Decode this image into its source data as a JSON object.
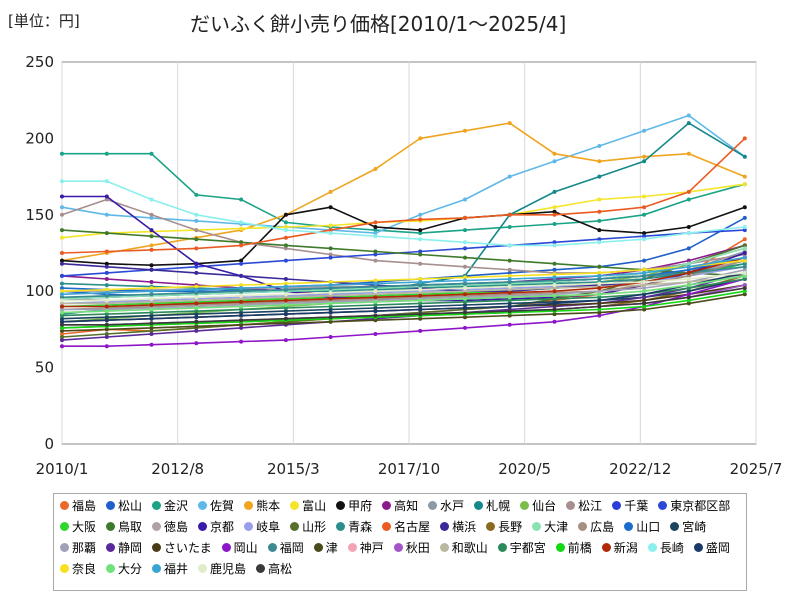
{
  "chart_data": {
    "type": "line",
    "title": "だいふく餅小売り価格[2010/1～2025/4]",
    "unit_label": "[単位：円]",
    "xlabel": "",
    "ylabel": "",
    "ylim": [
      0,
      250
    ],
    "yticks": [
      0,
      50,
      100,
      150,
      200,
      250
    ],
    "xlim": [
      "2010/1",
      "2025/7"
    ],
    "xticks": [
      "2010/1",
      "2012/8",
      "2015/3",
      "2017/10",
      "2020/5",
      "2022/12",
      "2025/7"
    ],
    "grid": true,
    "legend_position": "bottom",
    "x_dates": [
      "2010/1",
      "2011/1",
      "2012/1",
      "2013/1",
      "2014/1",
      "2015/1",
      "2016/1",
      "2017/1",
      "2018/1",
      "2019/1",
      "2020/1",
      "2021/1",
      "2022/1",
      "2023/1",
      "2024/1",
      "2025/4"
    ],
    "series": [
      {
        "name": "福島",
        "color": "#ea6a2c",
        "values": [
          72,
          75,
          74,
          76,
          78,
          80,
          82,
          84,
          86,
          88,
          90,
          94,
          98,
          104,
          112,
          134
        ]
      },
      {
        "name": "松山",
        "color": "#1f5fc7",
        "values": [
          100,
          98,
          97,
          99,
          101,
          103,
          104,
          106,
          108,
          110,
          112,
          114,
          116,
          120,
          128,
          148
        ]
      },
      {
        "name": "金沢",
        "color": "#1aa386",
        "values": [
          190,
          190,
          190,
          163,
          160,
          145,
          142,
          140,
          138,
          140,
          142,
          144,
          146,
          150,
          160,
          170
        ]
      },
      {
        "name": "佐賀",
        "color": "#5fb8e8",
        "values": [
          155,
          150,
          148,
          146,
          144,
          142,
          140,
          138,
          150,
          160,
          175,
          185,
          195,
          205,
          215,
          188
        ]
      },
      {
        "name": "熊本",
        "color": "#f0a520",
        "values": [
          120,
          125,
          130,
          135,
          140,
          150,
          165,
          180,
          200,
          205,
          210,
          190,
          185,
          188,
          190,
          175
        ]
      },
      {
        "name": "富山",
        "color": "#f5e52a",
        "values": [
          135,
          138,
          139,
          140,
          141,
          142,
          143,
          145,
          146,
          148,
          150,
          155,
          160,
          162,
          165,
          170
        ]
      },
      {
        "name": "甲府",
        "color": "#111111",
        "values": [
          120,
          118,
          117,
          118,
          120,
          150,
          155,
          142,
          140,
          148,
          150,
          152,
          140,
          138,
          142,
          155
        ]
      },
      {
        "name": "高知",
        "color": "#8a1b8c",
        "values": [
          110,
          108,
          106,
          104,
          102,
          100,
          98,
          100,
          102,
          104,
          106,
          108,
          110,
          114,
          120,
          130
        ]
      },
      {
        "name": "水戸",
        "color": "#8c9aa6",
        "values": [
          95,
          94,
          93,
          92,
          92,
          93,
          94,
          95,
          96,
          98,
          100,
          102,
          104,
          108,
          114,
          126
        ]
      },
      {
        "name": "札幌",
        "color": "#14888a",
        "values": [
          85,
          88,
          90,
          92,
          94,
          96,
          98,
          100,
          105,
          110,
          150,
          165,
          175,
          185,
          210,
          188
        ]
      },
      {
        "name": "仙台",
        "color": "#7cbc4a",
        "values": [
          80,
          82,
          84,
          86,
          88,
          90,
          92,
          94,
          96,
          98,
          100,
          102,
          106,
          110,
          118,
          128
        ]
      },
      {
        "name": "松江",
        "color": "#a88f8f",
        "values": [
          150,
          160,
          150,
          140,
          132,
          128,
          124,
          120,
          118,
          116,
          114,
          112,
          112,
          114,
          118,
          124
        ]
      },
      {
        "name": "千葉",
        "color": "#2a3dd8",
        "values": [
          95,
          96,
          97,
          98,
          99,
          100,
          101,
          102,
          103,
          104,
          105,
          106,
          108,
          112,
          118,
          130
        ]
      },
      {
        "name": "東京都区部",
        "color": "#2b49d6",
        "values": [
          110,
          112,
          114,
          116,
          118,
          120,
          122,
          124,
          126,
          128,
          130,
          132,
          134,
          136,
          138,
          140
        ]
      },
      {
        "name": "大阪",
        "color": "#2fd62f",
        "values": [
          90,
          91,
          92,
          93,
          94,
          95,
          96,
          97,
          98,
          99,
          100,
          102,
          104,
          106,
          110,
          118
        ]
      },
      {
        "name": "鳥取",
        "color": "#3f7a2b",
        "values": [
          140,
          138,
          136,
          134,
          132,
          130,
          128,
          126,
          124,
          122,
          120,
          118,
          116,
          114,
          112,
          110
        ]
      },
      {
        "name": "徳島",
        "color": "#b0a0a8",
        "values": [
          100,
          100,
          101,
          101,
          102,
          102,
          103,
          103,
          104,
          104,
          105,
          105,
          106,
          108,
          112,
          120
        ]
      },
      {
        "name": "京都",
        "color": "#3a1aa8",
        "values": [
          162,
          162,
          140,
          118,
          110,
          100,
          96,
          95,
          94,
          94,
          95,
          96,
          98,
          104,
          112,
          125
        ]
      },
      {
        "name": "岐阜",
        "color": "#9a9ee8",
        "values": [
          92,
          93,
          94,
          95,
          96,
          97,
          98,
          99,
          100,
          101,
          102,
          103,
          104,
          106,
          110,
          116
        ]
      },
      {
        "name": "山形",
        "color": "#55702a",
        "values": [
          70,
          72,
          74,
          76,
          78,
          80,
          82,
          84,
          86,
          88,
          90,
          95,
          100,
          108,
          118,
          130
        ]
      },
      {
        "name": "青森",
        "color": "#2a8f8a",
        "values": [
          105,
          104,
          103,
          102,
          101,
          100,
          100,
          101,
          102,
          103,
          104,
          105,
          106,
          108,
          112,
          118
        ]
      },
      {
        "name": "名古屋",
        "color": "#ea5a22",
        "values": [
          125,
          126,
          127,
          128,
          130,
          135,
          140,
          145,
          147,
          148,
          150,
          150,
          152,
          155,
          165,
          200
        ]
      },
      {
        "name": "横浜",
        "color": "#3a2a9a",
        "values": [
          118,
          116,
          114,
          112,
          110,
          108,
          106,
          104,
          102,
          100,
          100,
          102,
          104,
          106,
          112,
          122
        ]
      },
      {
        "name": "長野",
        "color": "#8a6a22",
        "values": [
          76,
          77,
          78,
          79,
          80,
          81,
          82,
          83,
          84,
          85,
          86,
          88,
          90,
          94,
          100,
          110
        ]
      },
      {
        "name": "大津",
        "color": "#8ae2b4",
        "values": [
          95,
          96,
          97,
          98,
          99,
          100,
          101,
          102,
          103,
          104,
          105,
          106,
          108,
          112,
          118,
          128
        ]
      },
      {
        "name": "広島",
        "color": "#a68f80",
        "values": [
          88,
          89,
          90,
          91,
          92,
          93,
          94,
          95,
          96,
          97,
          98,
          99,
          100,
          104,
          110,
          120
        ]
      },
      {
        "name": "山口",
        "color": "#1c6cd0",
        "values": [
          102,
          101,
          100,
          100,
          100,
          101,
          102,
          103,
          104,
          105,
          106,
          107,
          108,
          110,
          114,
          122
        ]
      },
      {
        "name": "宮崎",
        "color": "#1a4460",
        "values": [
          82,
          83,
          84,
          85,
          86,
          87,
          88,
          89,
          90,
          91,
          92,
          93,
          94,
          96,
          100,
          108
        ]
      },
      {
        "name": "那覇",
        "color": "#a0a0b8",
        "values": [
          88,
          88,
          89,
          90,
          91,
          92,
          93,
          94,
          95,
          96,
          97,
          98,
          100,
          102,
          106,
          114
        ]
      },
      {
        "name": "静岡",
        "color": "#5a2a9a",
        "values": [
          68,
          70,
          72,
          74,
          76,
          78,
          80,
          82,
          84,
          86,
          88,
          90,
          92,
          96,
          102,
          112
        ]
      },
      {
        "name": "さいたま",
        "color": "#4a3a16",
        "values": [
          80,
          81,
          82,
          83,
          84,
          85,
          86,
          87,
          88,
          89,
          90,
          91,
          92,
          94,
          98,
          104
        ]
      },
      {
        "name": "岡山",
        "color": "#8f16c8",
        "values": [
          64,
          64,
          65,
          66,
          67,
          68,
          70,
          72,
          74,
          76,
          78,
          80,
          84,
          90,
          98,
          108
        ]
      },
      {
        "name": "福岡",
        "color": "#3a8a90",
        "values": [
          96,
          97,
          98,
          99,
          100,
          101,
          102,
          103,
          104,
          105,
          106,
          107,
          108,
          110,
          112,
          116
        ]
      },
      {
        "name": "津",
        "color": "#4a4a1a",
        "values": [
          74,
          75,
          76,
          77,
          78,
          79,
          80,
          81,
          82,
          83,
          84,
          85,
          86,
          88,
          92,
          98
        ]
      },
      {
        "name": "神戸",
        "color": "#f2a4b4",
        "values": [
          86,
          87,
          88,
          89,
          90,
          91,
          92,
          93,
          94,
          95,
          96,
          97,
          98,
          100,
          104,
          110
        ]
      },
      {
        "name": "秋田",
        "color": "#a454c6",
        "values": [
          78,
          78,
          79,
          80,
          81,
          82,
          83,
          84,
          85,
          86,
          87,
          88,
          90,
          92,
          96,
          104
        ]
      },
      {
        "name": "和歌山",
        "color": "#b8b8a0",
        "values": [
          92,
          92,
          93,
          94,
          95,
          96,
          97,
          98,
          99,
          100,
          101,
          102,
          103,
          104,
          106,
          110
        ]
      },
      {
        "name": "宇都宮",
        "color": "#2a8a5a",
        "values": [
          84,
          85,
          86,
          87,
          88,
          89,
          90,
          91,
          92,
          93,
          94,
          95,
          96,
          98,
          102,
          108
        ]
      },
      {
        "name": "前橋",
        "color": "#14d814",
        "values": [
          76,
          77,
          78,
          79,
          80,
          81,
          82,
          83,
          84,
          85,
          86,
          87,
          88,
          90,
          94,
          100
        ]
      },
      {
        "name": "新潟",
        "color": "#b02a08",
        "values": [
          90,
          90,
          91,
          92,
          93,
          94,
          95,
          96,
          97,
          98,
          99,
          100,
          102,
          106,
          112,
          122
        ]
      },
      {
        "name": "長崎",
        "color": "#8af0ee",
        "values": [
          172,
          172,
          160,
          150,
          145,
          140,
          138,
          136,
          134,
          132,
          130,
          130,
          132,
          134,
          138,
          142
        ]
      },
      {
        "name": "盛岡",
        "color": "#1a3a6a",
        "values": [
          80,
          81,
          82,
          83,
          84,
          85,
          86,
          87,
          88,
          89,
          90,
          92,
          94,
          98,
          104,
          112
        ]
      },
      {
        "name": "奈良",
        "color": "#f6e020",
        "values": [
          100,
          101,
          102,
          103,
          104,
          105,
          106,
          107,
          108,
          109,
          110,
          111,
          112,
          114,
          116,
          120
        ]
      },
      {
        "name": "大分",
        "color": "#70e27a",
        "values": [
          86,
          87,
          88,
          89,
          90,
          91,
          92,
          93,
          94,
          95,
          96,
          97,
          98,
          100,
          104,
          110
        ]
      },
      {
        "name": "福井",
        "color": "#3aa4d2",
        "values": [
          98,
          99,
          100,
          101,
          102,
          103,
          104,
          105,
          106,
          107,
          108,
          109,
          110,
          112,
          116,
          122
        ]
      },
      {
        "name": "鹿児島",
        "color": "#e0ecc8",
        "values": [
          94,
          94,
          95,
          96,
          97,
          98,
          99,
          100,
          101,
          102,
          103,
          104,
          105,
          106,
          108,
          112
        ]
      },
      {
        "name": "高松",
        "color": "#3a3a3a",
        "values": [
          78,
          78,
          79,
          80,
          81,
          82,
          83,
          84,
          85,
          86,
          87,
          88,
          90,
          92,
          96,
          102
        ]
      }
    ]
  }
}
